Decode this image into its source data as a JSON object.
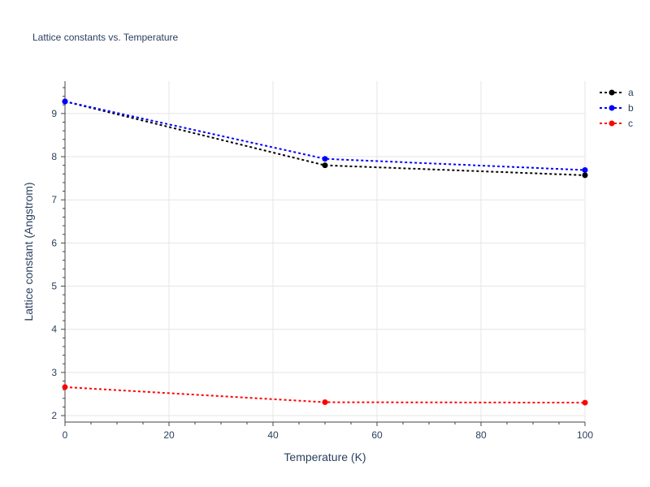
{
  "chart_data": {
    "type": "line",
    "title": "Lattice constants vs. Temperature",
    "xlabel": "Temperature (K)",
    "ylabel": "Lattice constant (Angstrom)",
    "xlim": [
      0,
      100
    ],
    "ylim": [
      1.85,
      9.75
    ],
    "x_ticks": [
      0,
      20,
      40,
      60,
      80,
      100
    ],
    "y_ticks": [
      2,
      3,
      4,
      5,
      6,
      7,
      8,
      9
    ],
    "grid": true,
    "legend_position": "top-right",
    "series": [
      {
        "name": "a",
        "color": "#000000",
        "x": [
          0,
          50,
          100
        ],
        "y": [
          9.28,
          7.8,
          7.57
        ]
      },
      {
        "name": "b",
        "color": "#0000ff",
        "x": [
          0,
          50,
          100
        ],
        "y": [
          9.28,
          7.95,
          7.69
        ]
      },
      {
        "name": "c",
        "color": "#ff0000",
        "x": [
          0,
          50,
          100
        ],
        "y": [
          2.66,
          2.31,
          2.3
        ]
      }
    ]
  }
}
